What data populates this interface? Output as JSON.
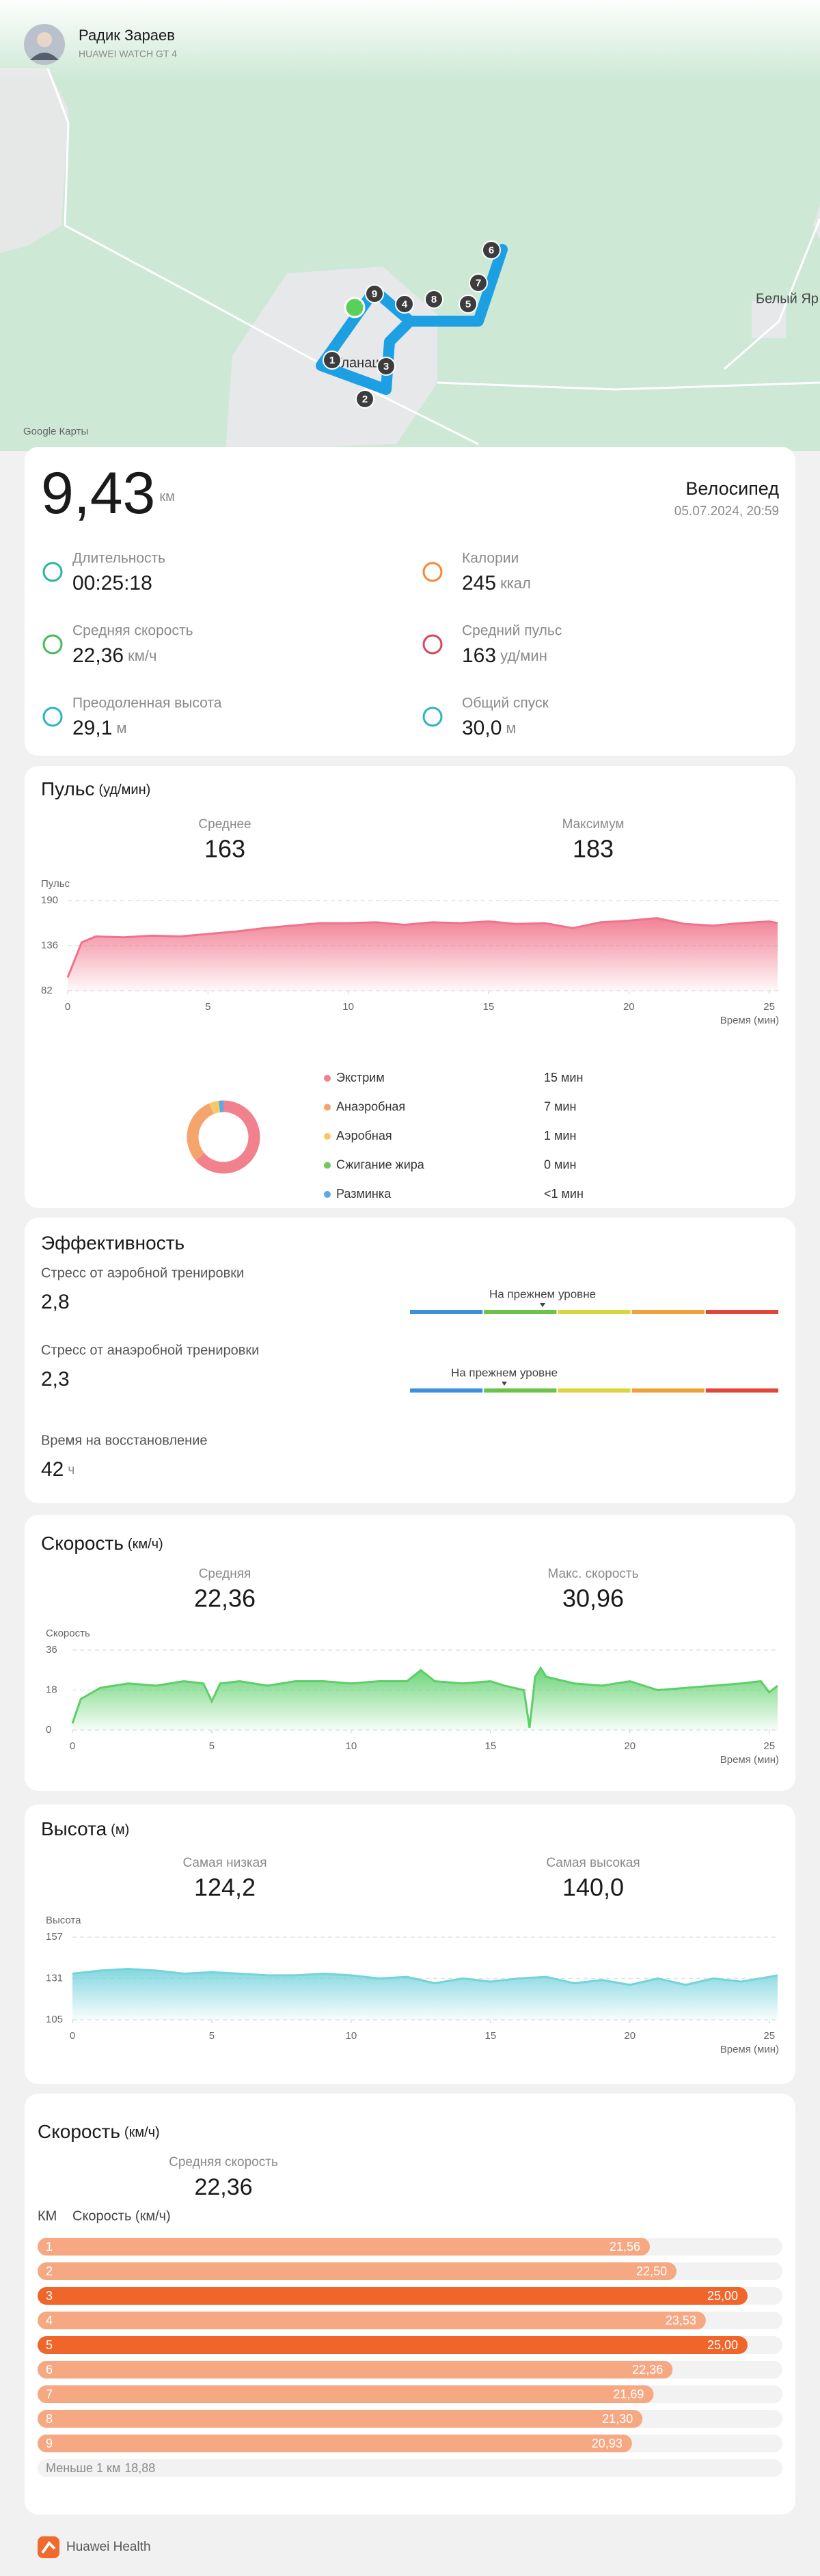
{
  "header": {
    "name": "Радик Зараев",
    "device": "HUAWEI WATCH GT 4"
  },
  "map": {
    "attribution": "Google Карты",
    "places": [
      "Белый Яр",
      "Уланаш"
    ],
    "markers": [
      1,
      2,
      3,
      4,
      5,
      6,
      7,
      8,
      9
    ]
  },
  "summary": {
    "distance": "9,43",
    "distance_unit": "км",
    "activity": "Велосипед",
    "datetime": "05.07.2024, 20:59",
    "metrics": [
      {
        "label": "Длительность",
        "value": "00:25:18"
      },
      {
        "label": "Калории",
        "value": "245",
        "unit": "ккал"
      },
      {
        "label": "Средняя скорость",
        "value": "22,36",
        "unit": "км/ч"
      },
      {
        "label": "Средний пульс",
        "value": "163",
        "unit": "уд/мин"
      },
      {
        "label": "Преодоленная высота",
        "value": "29,1",
        "unit": "м"
      },
      {
        "label": "Общий спуск",
        "value": "30,0",
        "unit": "м"
      }
    ]
  },
  "pulse": {
    "title": "Пульс",
    "unit": "(уд/мин)",
    "stats": [
      {
        "label": "Среднее",
        "value": "163"
      },
      {
        "label": "Максимум",
        "value": "183"
      }
    ],
    "chart": {
      "type": "area",
      "y_label": "Пульс",
      "x_label": "Время (мин)",
      "color": "#f0738a",
      "x": [
        0,
        0.5,
        1,
        2,
        3,
        4,
        5,
        6,
        7,
        8,
        9,
        10,
        11,
        12,
        13,
        14,
        15,
        16,
        17,
        18,
        19,
        20,
        21,
        22,
        23,
        24,
        25,
        25.3
      ],
      "values": [
        98,
        140,
        147,
        146,
        148,
        147,
        150,
        153,
        157,
        160,
        163,
        163,
        164,
        161,
        164,
        163,
        165,
        162,
        163,
        157,
        164,
        166,
        169,
        162,
        160,
        163,
        165,
        163
      ],
      "xlim": [
        0,
        25.35
      ],
      "xticks": [
        0,
        5,
        10,
        15,
        20,
        25
      ],
      "ylim": [
        82,
        190
      ],
      "yticks": [
        82,
        136,
        190
      ]
    },
    "zones": {
      "type": "donut",
      "categories": [
        "Экстрим",
        "Анаэробная",
        "Аэробная",
        "Сжигание жира",
        "Разминка"
      ],
      "values": [
        15,
        7,
        1,
        0,
        0.5
      ],
      "value_labels": [
        "15 мин",
        "7 мин",
        "1 мин",
        "0 мин",
        "<1 мин"
      ],
      "colors": [
        "#f2818e",
        "#f5a46c",
        "#f6c86a",
        "#72c75a",
        "#5aa8e4"
      ]
    }
  },
  "efficiency": {
    "title": "Эффективность",
    "items": [
      {
        "label": "Стресс от аэробной тренировки",
        "value": "2,8",
        "status": "На прежнем уровне"
      },
      {
        "label": "Стресс от анаэробной тренировки",
        "value": "2,3",
        "status": "На прежнем уровне"
      }
    ],
    "recovery": {
      "label": "Время на восстановление",
      "value": "42",
      "unit": "ч"
    },
    "scale_colors": [
      "#3b8fdc",
      "#6cc24a",
      "#d8d63c",
      "#f0a23a",
      "#e0473a"
    ]
  },
  "speed": {
    "title": "Скорость",
    "unit": "(км/ч)",
    "stats": [
      {
        "label": "Средняя",
        "value": "22,36"
      },
      {
        "label": "Макс. скорость",
        "value": "30,96"
      }
    ],
    "chart": {
      "type": "area",
      "y_label": "Скорость",
      "x_label": "Время (мин)",
      "color": "#5bcf68",
      "x": [
        0,
        0.3,
        1,
        2,
        3,
        4,
        4.7,
        5,
        5.3,
        6,
        7,
        8,
        9,
        10,
        11,
        12,
        12.5,
        13,
        14,
        15,
        15.5,
        16.2,
        16.4,
        16.6,
        16.8,
        17,
        18,
        19,
        20,
        21,
        22,
        23,
        24,
        24.7,
        25,
        25.3
      ],
      "values": [
        3,
        14,
        19,
        21,
        20,
        22,
        21,
        13,
        21,
        22,
        20,
        22,
        22,
        21,
        22,
        22,
        27,
        22,
        21,
        22,
        20,
        18,
        1,
        24,
        28,
        24,
        21,
        20,
        22,
        18,
        19,
        20,
        21,
        22,
        17,
        20
      ],
      "xlim": [
        0,
        25.35
      ],
      "xticks": [
        0,
        5,
        10,
        15,
        20,
        25
      ],
      "ylim": [
        0,
        36
      ],
      "yticks": [
        0,
        18,
        36
      ]
    }
  },
  "altitude": {
    "title": "Высота",
    "unit": "(м)",
    "stats": [
      {
        "label": "Самая низкая",
        "value": "124,2"
      },
      {
        "label": "Самая высокая",
        "value": "140,0"
      }
    ],
    "chart": {
      "type": "area",
      "y_label": "Высота",
      "x_label": "Время (мин)",
      "color": "#74d3dc",
      "x": [
        0,
        1,
        2,
        3,
        4,
        5,
        6,
        7,
        8,
        9,
        10,
        11,
        12,
        13,
        14,
        15,
        16,
        17,
        18,
        19,
        20,
        21,
        22,
        23,
        24,
        25,
        25.3
      ],
      "values": [
        134,
        136,
        137,
        136,
        134,
        135,
        134,
        133,
        133,
        134,
        133,
        131,
        132,
        128,
        131,
        129,
        131,
        132,
        128,
        130,
        127,
        131,
        127,
        131,
        129,
        132,
        133
      ],
      "xlim": [
        0,
        25.35
      ],
      "xticks": [
        0,
        5,
        10,
        15,
        20,
        25
      ],
      "ylim": [
        105,
        157
      ],
      "yticks": [
        105,
        131,
        157
      ]
    }
  },
  "splits": {
    "title": "Скорость",
    "unit": "(км/ч)",
    "average": {
      "label": "Средняя скорость",
      "value": "22,36"
    },
    "columns": [
      "КМ",
      "Скорость (км/ч)"
    ],
    "chart": {
      "type": "bar",
      "orientation": "horizontal",
      "categories": [
        1,
        2,
        3,
        4,
        5,
        6,
        7,
        8,
        9
      ],
      "values": [
        21.56,
        22.5,
        25,
        23.53,
        25,
        22.36,
        21.69,
        21.3,
        20.93
      ],
      "value_labels": [
        "21,56",
        "22,50",
        "25,00",
        "23,53",
        "25,00",
        "22,36",
        "21,69",
        "21,30",
        "20,93"
      ],
      "color": "#f6a883",
      "highlight_color": "#f0652a"
    },
    "remainder": {
      "label": "Меньше 1 км",
      "value": "18,88"
    }
  },
  "footer": {
    "app": "Huawei Health"
  }
}
